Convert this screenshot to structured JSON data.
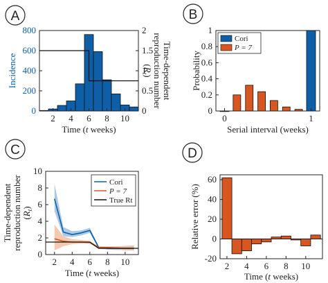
{
  "colors": {
    "blue": "#0e5fa8",
    "orange": "#d8561f",
    "black": "#111111",
    "grid": "#dddddd",
    "bandBlue": "#8fb7db",
    "bandOrange": "#f0b796"
  },
  "chart_data": [
    {
      "panel": "A",
      "type": "bar",
      "x": [
        1,
        2,
        3,
        4,
        5,
        6,
        7,
        8,
        9,
        10,
        11
      ],
      "values": [
        5,
        20,
        55,
        100,
        270,
        760,
        590,
        310,
        170,
        60,
        40
      ],
      "ylim": [
        0,
        800
      ],
      "xlim": [
        0.5,
        11.5
      ],
      "yticks": [
        0,
        200,
        400,
        600,
        800
      ],
      "xticks": [
        2,
        4,
        6,
        8,
        10
      ],
      "ylabel": "Incidence",
      "xlabel": "Time",
      "xlabel_parts": [
        "(",
        "t",
        " weeks)"
      ],
      "y2label_lines": [
        "Time-dependent",
        "reproduction number"
      ],
      "y2label_symbol": "(Rt)",
      "y2ticks": [
        0,
        0.5,
        1,
        1.5,
        2
      ],
      "y2lim": [
        0,
        2
      ],
      "rt_line": {
        "x": [
          0.5,
          6,
          6,
          11.5
        ],
        "y": [
          1.5,
          1.5,
          0.75,
          0.75
        ]
      }
    },
    {
      "panel": "B",
      "type": "bar",
      "legend": [
        {
          "name": "Cori",
          "color": "blue"
        },
        {
          "name": "P = 7",
          "color": "orange"
        }
      ],
      "series": [
        {
          "name": "Cori",
          "x": [
            0,
            1
          ],
          "values": [
            0,
            1
          ]
        },
        {
          "name": "P = 7",
          "x": [
            0.143,
            0.286,
            0.429,
            0.571,
            0.714,
            0.857
          ],
          "values": [
            0.2,
            0.32,
            0.24,
            0.13,
            0.05,
            0.02
          ]
        }
      ],
      "ylim": [
        0,
        1
      ],
      "xlim": [
        -0.1,
        1.1
      ],
      "yticks": [
        0,
        0.2,
        0.4,
        0.6,
        0.8,
        1
      ],
      "xticks": [
        0,
        1
      ],
      "ylabel": "Probability",
      "xlabel": "Serial interval (weeks)"
    },
    {
      "panel": "C",
      "type": "line",
      "legend": [
        {
          "name": "Cori",
          "color": "blue"
        },
        {
          "name": "P = 7",
          "color": "orange"
        },
        {
          "name": "True Rt",
          "color": "black"
        }
      ],
      "series": [
        {
          "name": "Cori",
          "x": [
            2,
            3,
            4,
            5,
            6,
            7,
            8,
            9,
            10,
            11
          ],
          "values": [
            6.7,
            2.7,
            2.4,
            2.6,
            2.9,
            0.85,
            0.75,
            0.75,
            0.75,
            0.75
          ],
          "lower": [
            5.2,
            2.2,
            2.1,
            2.3,
            2.6,
            0.7,
            0.6,
            0.55,
            0.55,
            0.5
          ],
          "upper": [
            8.5,
            3.3,
            2.8,
            2.9,
            3.2,
            1.0,
            0.9,
            0.95,
            0.95,
            1.0
          ]
        },
        {
          "name": "P = 7",
          "x": [
            2,
            3,
            4,
            5,
            6,
            7,
            8,
            9,
            10,
            11
          ],
          "values": [
            1.9,
            1.6,
            1.5,
            1.5,
            1.45,
            0.85,
            0.85,
            0.8,
            0.75,
            0.75
          ],
          "lower": [
            0.5,
            1.0,
            1.25,
            1.3,
            1.3,
            0.7,
            0.7,
            0.6,
            0.5,
            0.5
          ],
          "upper": [
            3.6,
            2.2,
            1.85,
            1.75,
            1.65,
            1.0,
            1.0,
            1.0,
            1.05,
            1.1
          ]
        },
        {
          "name": "True Rt",
          "x": [
            1,
            6,
            7,
            11.5
          ],
          "values": [
            1.5,
            1.5,
            0.75,
            0.75
          ]
        }
      ],
      "ylim": [
        0,
        10
      ],
      "xlim": [
        1,
        11.5
      ],
      "yticks": [
        0,
        2,
        4,
        6,
        8,
        10
      ],
      "xticks": [
        2,
        4,
        6,
        8,
        10
      ],
      "ylabel_lines": [
        "Time-dependent",
        "reproduction number"
      ],
      "ylabel_symbol": "(Rt)",
      "xlabel": "Time",
      "xlabel_parts": [
        "(",
        "t",
        " weeks)"
      ]
    },
    {
      "panel": "D",
      "type": "bar",
      "x": [
        2,
        3,
        4,
        5,
        6,
        7,
        8,
        9,
        10,
        11
      ],
      "values": [
        62,
        -15,
        -12,
        -5,
        -3,
        2,
        3,
        -1,
        -7,
        4
      ],
      "ylim": [
        -20,
        65
      ],
      "xlim": [
        1.3,
        11.7
      ],
      "yticks": [
        -20,
        0,
        20,
        40,
        60
      ],
      "xticks": [
        2,
        4,
        6,
        8,
        10
      ],
      "ylabel": "Relative error (%)",
      "xlabel": "Time",
      "xlabel_parts": [
        "(",
        "t",
        " weeks)"
      ]
    }
  ],
  "panels": {
    "A": "A",
    "B": "B",
    "C": "C",
    "D": "D"
  }
}
